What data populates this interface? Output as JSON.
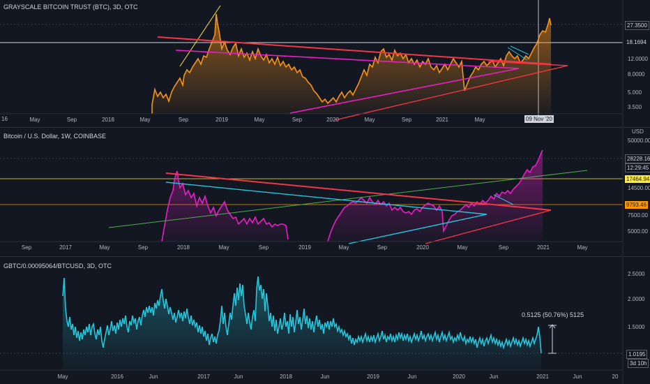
{
  "panes": [
    {
      "id": "gbtc",
      "title": "GRAYSCALE BITCOIN TRUST (BTC), 3D, OTC",
      "y_ticks": [
        "3.500",
        "5.000",
        "8.0000",
        "12.0000",
        "18.1694",
        "27.3500"
      ],
      "x_ticks": [
        "2016",
        "May",
        "Sep",
        "2018",
        "May",
        "Sep",
        "2019",
        "May",
        "Sep",
        "2020",
        "May",
        "Sep",
        "2021",
        "May"
      ],
      "price_badge": "27.3500",
      "crosshair_badge": "18.1694",
      "date_badge": "09 Nov '20",
      "x_label_partial": "16",
      "line_color": "#f7931a"
    },
    {
      "id": "btcusd",
      "title": "Bitcoin / U.S. Dollar, 1W, COINBASE",
      "y_ticks": [
        "5000.00",
        "7500.00",
        "14500.00",
        "50000.00"
      ],
      "top_tick": "USD",
      "x_ticks": [
        "Sep",
        "2017",
        "May",
        "Sep",
        "2018",
        "May",
        "Sep",
        "2019",
        "May",
        "Sep",
        "2020",
        "May",
        "Sep",
        "2021",
        "May"
      ],
      "price_badge": "28228.16",
      "countdown_badge": "12:29:45",
      "yellow_badge": "17464.94",
      "orange_badge": "9793.46",
      "line_color": "#e91ec6"
    },
    {
      "id": "ratio",
      "title": "GBTC/0.00095064/BTCUSD, 3D, OTC",
      "y_ticks": [
        "1.5000",
        "2.0000",
        "2.5000"
      ],
      "x_ticks": [
        "May",
        "2016",
        "Jun",
        "2017",
        "Jun",
        "2018",
        "Jun",
        "2019",
        "Jun",
        "2020",
        "Jun",
        "2021",
        "Jun",
        "20"
      ],
      "price_badge": "1.0195",
      "countdown_badge": "3d 10h",
      "measure_label": "0.5125 (50.76%) 5125",
      "line_color": "#26c6da"
    }
  ]
}
